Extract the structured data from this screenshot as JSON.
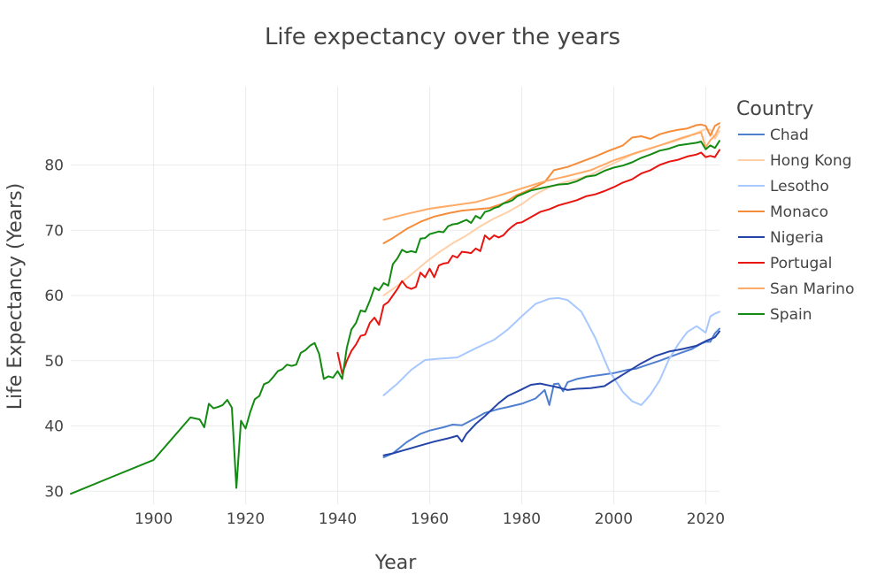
{
  "chart_data": {
    "type": "line",
    "title": "Life expectancy over the years",
    "xlabel": "Year",
    "ylabel": "Life Expectancy (Years)",
    "xlim": [
      1882,
      2023
    ],
    "ylim": [
      28,
      92
    ],
    "xticks": [
      1900,
      1920,
      1940,
      1960,
      1980,
      2000,
      2020
    ],
    "yticks": [
      30,
      40,
      50,
      60,
      70,
      80
    ],
    "grid": true,
    "legend_title": "Country",
    "legend_position": "right",
    "series": [
      {
        "name": "Chad",
        "color": "#4f7fd0",
        "x": [
          1950,
          1952,
          1955,
          1958,
          1960,
          1963,
          1965,
          1967,
          1970,
          1972,
          1975,
          1977,
          1980,
          1983,
          1985,
          1986,
          1987,
          1988,
          1989,
          1990,
          1992,
          1995,
          1997,
          2000,
          2003,
          2005,
          2007,
          2010,
          2013,
          2015,
          2017,
          2019,
          2020,
          2021,
          2022,
          2023
        ],
        "y": [
          35.2,
          35.8,
          37.5,
          38.8,
          39.3,
          39.8,
          40.2,
          40.1,
          41.2,
          42.0,
          42.6,
          42.9,
          43.4,
          44.2,
          45.5,
          43.2,
          46.4,
          46.5,
          45.3,
          46.7,
          47.2,
          47.6,
          47.8,
          48.1,
          48.6,
          48.8,
          49.3,
          50.0,
          50.8,
          51.3,
          51.8,
          52.6,
          52.9,
          52.9,
          54.2,
          54.9
        ]
      },
      {
        "name": "Hong Kong",
        "color": "#ffd0a8",
        "x": [
          1950,
          1953,
          1956,
          1959,
          1962,
          1965,
          1968,
          1971,
          1974,
          1977,
          1980,
          1983,
          1986,
          1989,
          1992,
          1995,
          1998,
          2001,
          2004,
          2007,
          2010,
          2013,
          2016,
          2019,
          2020,
          2021,
          2022,
          2023
        ],
        "y": [
          60.0,
          61.5,
          63.2,
          65.0,
          66.6,
          68.0,
          69.2,
          70.6,
          71.8,
          72.8,
          74.0,
          75.5,
          76.6,
          77.3,
          77.8,
          78.5,
          79.6,
          80.6,
          81.6,
          82.3,
          83.0,
          83.6,
          84.3,
          85.2,
          85.5,
          85.4,
          84.0,
          85.2
        ]
      },
      {
        "name": "Lesotho",
        "color": "#a8c8ff",
        "x": [
          1950,
          1953,
          1956,
          1959,
          1962,
          1966,
          1970,
          1974,
          1977,
          1980,
          1983,
          1986,
          1988,
          1990,
          1993,
          1996,
          1999,
          2002,
          2004,
          2006,
          2008,
          2010,
          2012,
          2014,
          2016,
          2018,
          2020,
          2021,
          2022,
          2023
        ],
        "y": [
          44.7,
          46.5,
          48.6,
          50.1,
          50.3,
          50.5,
          51.9,
          53.2,
          54.8,
          56.8,
          58.7,
          59.5,
          59.6,
          59.3,
          57.5,
          53.5,
          48.5,
          45.2,
          43.8,
          43.2,
          44.8,
          47.0,
          50.2,
          52.5,
          54.4,
          55.3,
          54.3,
          56.8,
          57.2,
          57.5
        ]
      },
      {
        "name": "Monaco",
        "color": "#f58c3a",
        "x": [
          1950,
          1952,
          1955,
          1958,
          1961,
          1964,
          1967,
          1970,
          1973,
          1976,
          1979,
          1982,
          1985,
          1987,
          1990,
          1993,
          1996,
          1999,
          2002,
          2004,
          2006,
          2008,
          2010,
          2012,
          2014,
          2016,
          2018,
          2019,
          2020,
          2021,
          2022,
          2023
        ],
        "y": [
          68.0,
          68.8,
          70.2,
          71.3,
          72.1,
          72.6,
          73.0,
          73.2,
          73.4,
          74.1,
          75.4,
          76.3,
          77.4,
          79.2,
          79.7,
          80.5,
          81.3,
          82.2,
          83.0,
          84.2,
          84.4,
          84.0,
          84.7,
          85.1,
          85.4,
          85.6,
          86.1,
          86.2,
          86.0,
          84.5,
          86.0,
          86.4
        ]
      },
      {
        "name": "Nigeria",
        "color": "#2444a8",
        "x": [
          1950,
          1952,
          1955,
          1958,
          1961,
          1964,
          1966,
          1967,
          1968,
          1970,
          1972,
          1975,
          1977,
          1980,
          1982,
          1984,
          1986,
          1988,
          1990,
          1992,
          1995,
          1998,
          2000,
          2003,
          2006,
          2009,
          2012,
          2015,
          2018,
          2020,
          2022,
          2023
        ],
        "y": [
          35.5,
          35.8,
          36.4,
          37.0,
          37.6,
          38.1,
          38.5,
          37.6,
          38.8,
          40.3,
          41.5,
          43.5,
          44.6,
          45.6,
          46.3,
          46.5,
          46.2,
          45.9,
          45.5,
          45.7,
          45.8,
          46.1,
          47.0,
          48.3,
          49.6,
          50.7,
          51.4,
          51.8,
          52.3,
          53.0,
          53.6,
          54.5
        ]
      },
      {
        "name": "Portugal",
        "color": "#e8140f",
        "x": [
          1940,
          1941,
          1942,
          1943,
          1944,
          1945,
          1946,
          1947,
          1948,
          1949,
          1950,
          1951,
          1952,
          1953,
          1954,
          1955,
          1956,
          1957,
          1958,
          1959,
          1960,
          1961,
          1962,
          1963,
          1964,
          1965,
          1966,
          1967,
          1968,
          1969,
          1970,
          1971,
          1972,
          1973,
          1974,
          1975,
          1976,
          1977,
          1978,
          1979,
          1980,
          1982,
          1984,
          1986,
          1988,
          1990,
          1992,
          1994,
          1996,
          1998,
          2000,
          2002,
          2004,
          2006,
          2008,
          2010,
          2012,
          2014,
          2016,
          2018,
          2019,
          2020,
          2021,
          2022,
          2023
        ],
        "y": [
          51.2,
          48.0,
          50.0,
          51.5,
          52.5,
          53.8,
          54.0,
          55.8,
          56.6,
          55.5,
          58.5,
          59.0,
          60.0,
          61.0,
          62.2,
          61.3,
          61.0,
          61.3,
          63.5,
          62.8,
          64.1,
          62.8,
          64.6,
          64.9,
          65.0,
          66.1,
          65.8,
          66.7,
          66.6,
          66.5,
          67.2,
          66.8,
          69.2,
          68.6,
          69.2,
          68.9,
          69.2,
          70.0,
          70.6,
          71.1,
          71.2,
          72.0,
          72.8,
          73.2,
          73.8,
          74.2,
          74.6,
          75.2,
          75.5,
          76.0,
          76.6,
          77.3,
          77.8,
          78.7,
          79.2,
          80.0,
          80.5,
          80.8,
          81.3,
          81.6,
          81.9,
          81.2,
          81.4,
          81.2,
          82.3
        ]
      },
      {
        "name": "San Marino",
        "color": "#ffaa66",
        "x": [
          1950,
          1955,
          1960,
          1965,
          1970,
          1975,
          1980,
          1985,
          1990,
          1995,
          2000,
          2005,
          2010,
          2015,
          2019,
          2020,
          2021,
          2022,
          2023
        ],
        "y": [
          71.6,
          72.5,
          73.3,
          73.8,
          74.3,
          75.3,
          76.4,
          77.5,
          78.3,
          79.2,
          80.7,
          81.9,
          83.0,
          84.2,
          85.0,
          82.7,
          83.8,
          84.5,
          85.9
        ]
      },
      {
        "name": "Spain",
        "color": "#138a12",
        "x": [
          1882,
          1891,
          1900,
          1908,
          1910,
          1911,
          1912,
          1913,
          1914,
          1915,
          1916,
          1917,
          1918,
          1919,
          1920,
          1921,
          1922,
          1923,
          1924,
          1925,
          1926,
          1927,
          1928,
          1929,
          1930,
          1931,
          1932,
          1933,
          1934,
          1935,
          1936,
          1937,
          1938,
          1939,
          1940,
          1941,
          1942,
          1943,
          1944,
          1945,
          1946,
          1947,
          1948,
          1949,
          1950,
          1951,
          1952,
          1953,
          1954,
          1955,
          1956,
          1957,
          1958,
          1959,
          1960,
          1961,
          1962,
          1963,
          1964,
          1965,
          1966,
          1967,
          1968,
          1969,
          1970,
          1971,
          1972,
          1973,
          1974,
          1975,
          1976,
          1977,
          1978,
          1979,
          1980,
          1982,
          1984,
          1986,
          1988,
          1990,
          1992,
          1994,
          1996,
          1998,
          2000,
          2002,
          2004,
          2006,
          2008,
          2010,
          2012,
          2014,
          2016,
          2018,
          2019,
          2020,
          2021,
          2022,
          2023
        ],
        "y": [
          29.6,
          32.2,
          34.8,
          41.3,
          41.0,
          39.8,
          43.4,
          42.7,
          42.9,
          43.2,
          44.0,
          42.8,
          30.5,
          40.8,
          39.6,
          42.1,
          44.1,
          44.6,
          46.4,
          46.7,
          47.5,
          48.4,
          48.7,
          49.4,
          49.2,
          49.4,
          51.2,
          51.6,
          52.3,
          52.7,
          51.0,
          47.2,
          47.6,
          47.4,
          48.4,
          47.2,
          52.0,
          54.8,
          55.8,
          57.7,
          57.5,
          59.2,
          61.2,
          60.8,
          61.9,
          61.5,
          64.8,
          65.7,
          67.0,
          66.6,
          66.8,
          66.6,
          68.7,
          68.8,
          69.4,
          69.6,
          69.8,
          69.7,
          70.6,
          70.9,
          71.0,
          71.3,
          71.6,
          71.1,
          72.2,
          71.8,
          72.8,
          73.0,
          73.4,
          73.6,
          74.1,
          74.3,
          74.6,
          75.2,
          75.5,
          76.1,
          76.4,
          76.7,
          77.0,
          77.1,
          77.5,
          78.2,
          78.4,
          79.1,
          79.6,
          79.9,
          80.4,
          81.1,
          81.6,
          82.2,
          82.5,
          83.0,
          83.2,
          83.4,
          83.6,
          82.4,
          83.0,
          82.6,
          83.7
        ]
      }
    ]
  }
}
